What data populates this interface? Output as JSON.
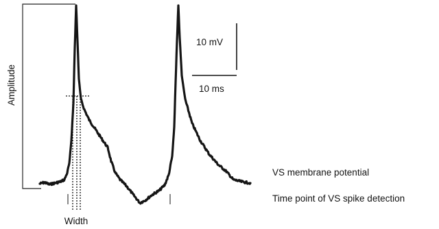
{
  "figure": {
    "amplitude_label": "Amplitude",
    "width_label": "Width",
    "scale_voltage_label": "10 mV",
    "scale_time_label": "10 ms",
    "legend": {
      "membrane_label": "VS membrane potential",
      "spike_detection_label": "Time point of VS spike detection"
    },
    "colors": {
      "trace": "#151515",
      "frame": "#222222",
      "spike_tick": "#8a8a8a"
    }
  }
}
